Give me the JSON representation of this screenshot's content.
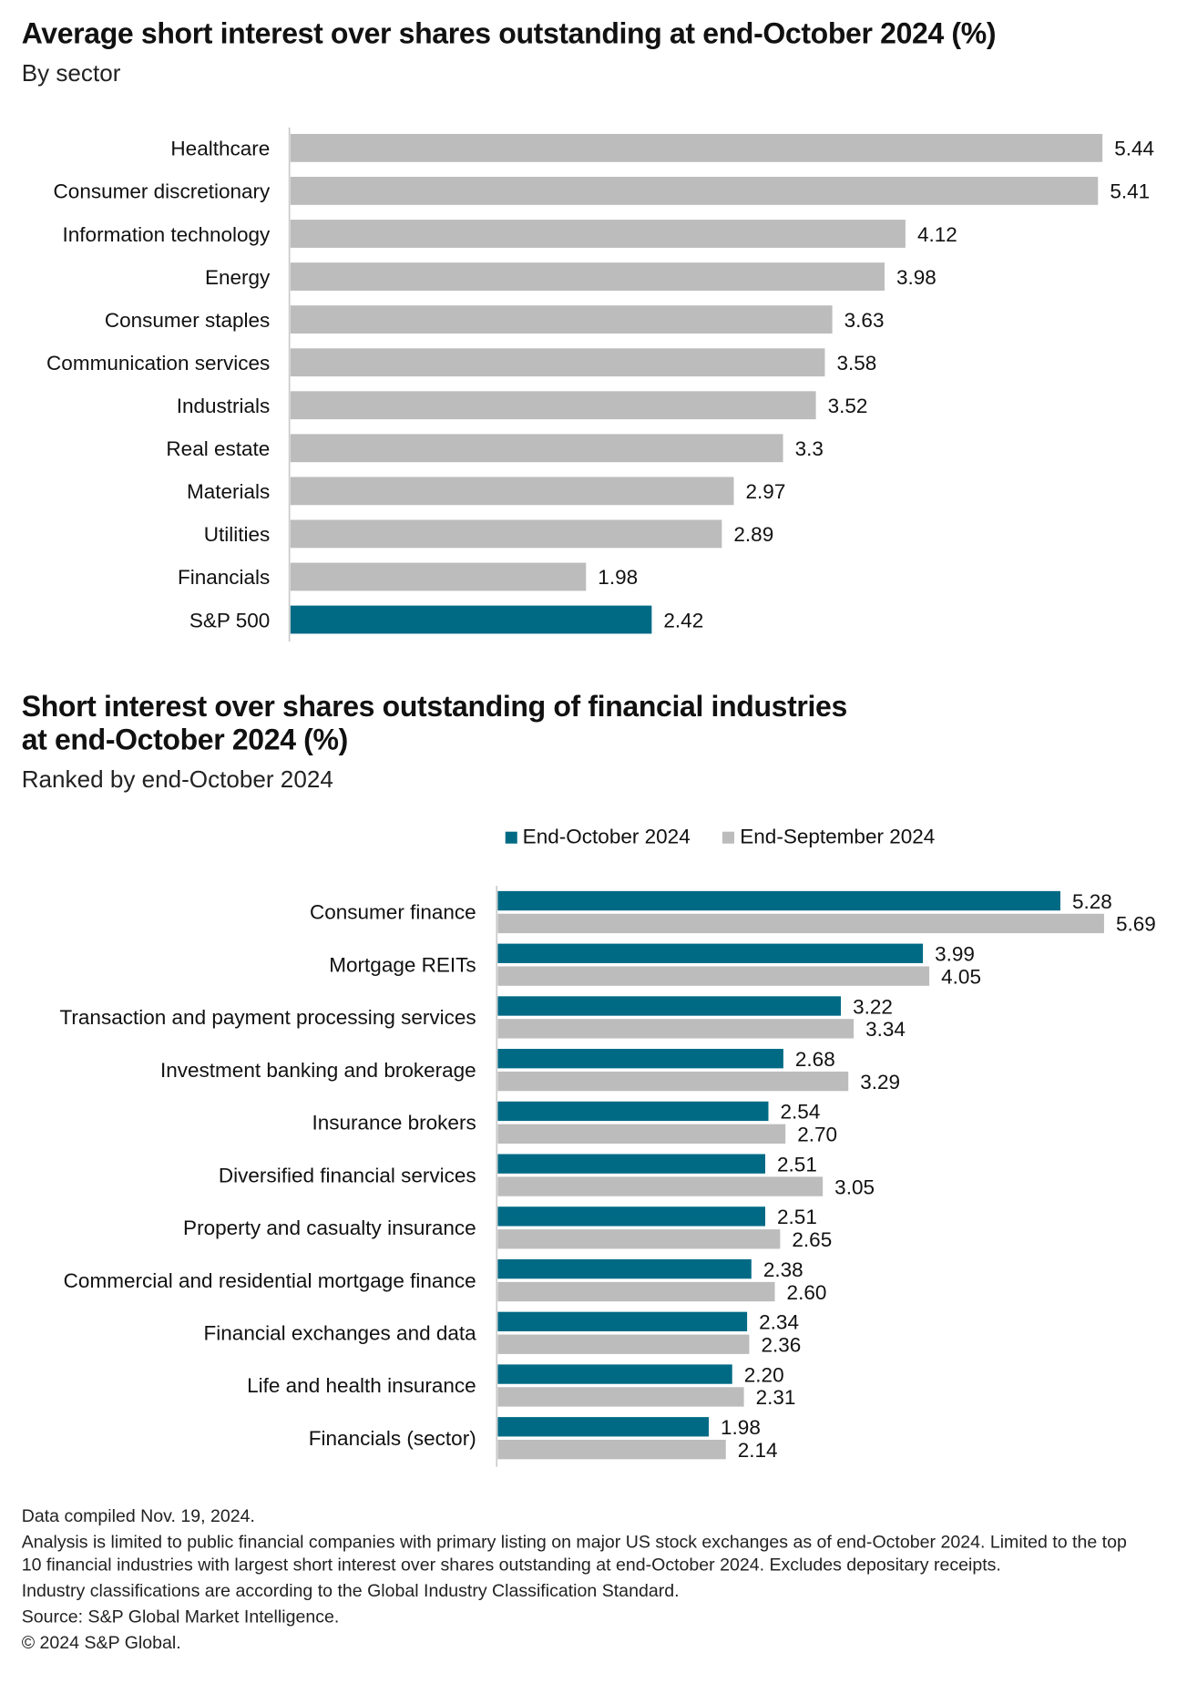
{
  "colors": {
    "primary": "#006a85",
    "secondary": "#bcbcbd"
  },
  "chart_data": [
    {
      "type": "bar",
      "orientation": "horizontal",
      "title": "Average short interest over shares outstanding at end-October 2024 (%)",
      "subtitle": "By sector",
      "categories": [
        "Healthcare",
        "Consumer discretionary",
        "Information technology",
        "Energy",
        "Consumer staples",
        "Communication services",
        "Industrials",
        "Real estate",
        "Materials",
        "Utilities",
        "Financials",
        "S&P 500"
      ],
      "values": [
        5.44,
        5.41,
        4.12,
        3.98,
        3.63,
        3.58,
        3.52,
        3.3,
        2.97,
        2.89,
        1.98,
        2.42
      ],
      "labels": [
        "5.44",
        "5.41",
        "4.12",
        "3.98",
        "3.63",
        "3.58",
        "3.52",
        "3.3",
        "2.97",
        "2.89",
        "1.98",
        "2.42"
      ],
      "highlight": "S&P 500",
      "xlim": [
        0,
        5.44
      ]
    },
    {
      "type": "bar",
      "orientation": "horizontal",
      "title_lines": [
        "Short interest over shares outstanding of financial industries",
        "at end-October 2024 (%)"
      ],
      "subtitle": "Ranked by end-October 2024",
      "categories": [
        "Consumer finance",
        "Mortgage REITs",
        "Transaction and payment processing services",
        "Investment banking and brokerage",
        "Insurance brokers",
        "Diversified financial services",
        "Property and casualty insurance",
        "Commercial and residential mortgage finance",
        "Financial exchanges and data",
        "Life and health insurance",
        "Financials (sector)"
      ],
      "series": [
        {
          "name": "End-October 2024",
          "values": [
            5.28,
            3.99,
            3.22,
            2.68,
            2.54,
            2.51,
            2.51,
            2.38,
            2.34,
            2.2,
            1.98
          ],
          "labels": [
            "5.28",
            "3.99",
            "3.22",
            "2.68",
            "2.54",
            "2.51",
            "2.51",
            "2.38",
            "2.34",
            "2.20",
            "1.98"
          ]
        },
        {
          "name": "End-September 2024",
          "values": [
            5.69,
            4.05,
            3.34,
            3.29,
            2.7,
            3.05,
            2.65,
            2.6,
            2.36,
            2.31,
            2.14
          ],
          "labels": [
            "5.69",
            "4.05",
            "3.34",
            "3.29",
            "2.70",
            "3.05",
            "2.65",
            "2.60",
            "2.36",
            "2.31",
            "2.14"
          ]
        }
      ],
      "legend": "top"
    }
  ],
  "notes": [
    "Data compiled Nov. 19, 2024.",
    "Analysis is limited to public financial companies with primary listing on major US stock exchanges as of end-October 2024. Limited to the top 10 financial industries with largest short interest over shares outstanding at end-October 2024. Excludes depositary receipts.",
    "Industry classifications are according to the Global Industry Classification Standard.",
    "Source: S&P Global Market Intelligence.",
    "© 2024 S&P Global."
  ]
}
